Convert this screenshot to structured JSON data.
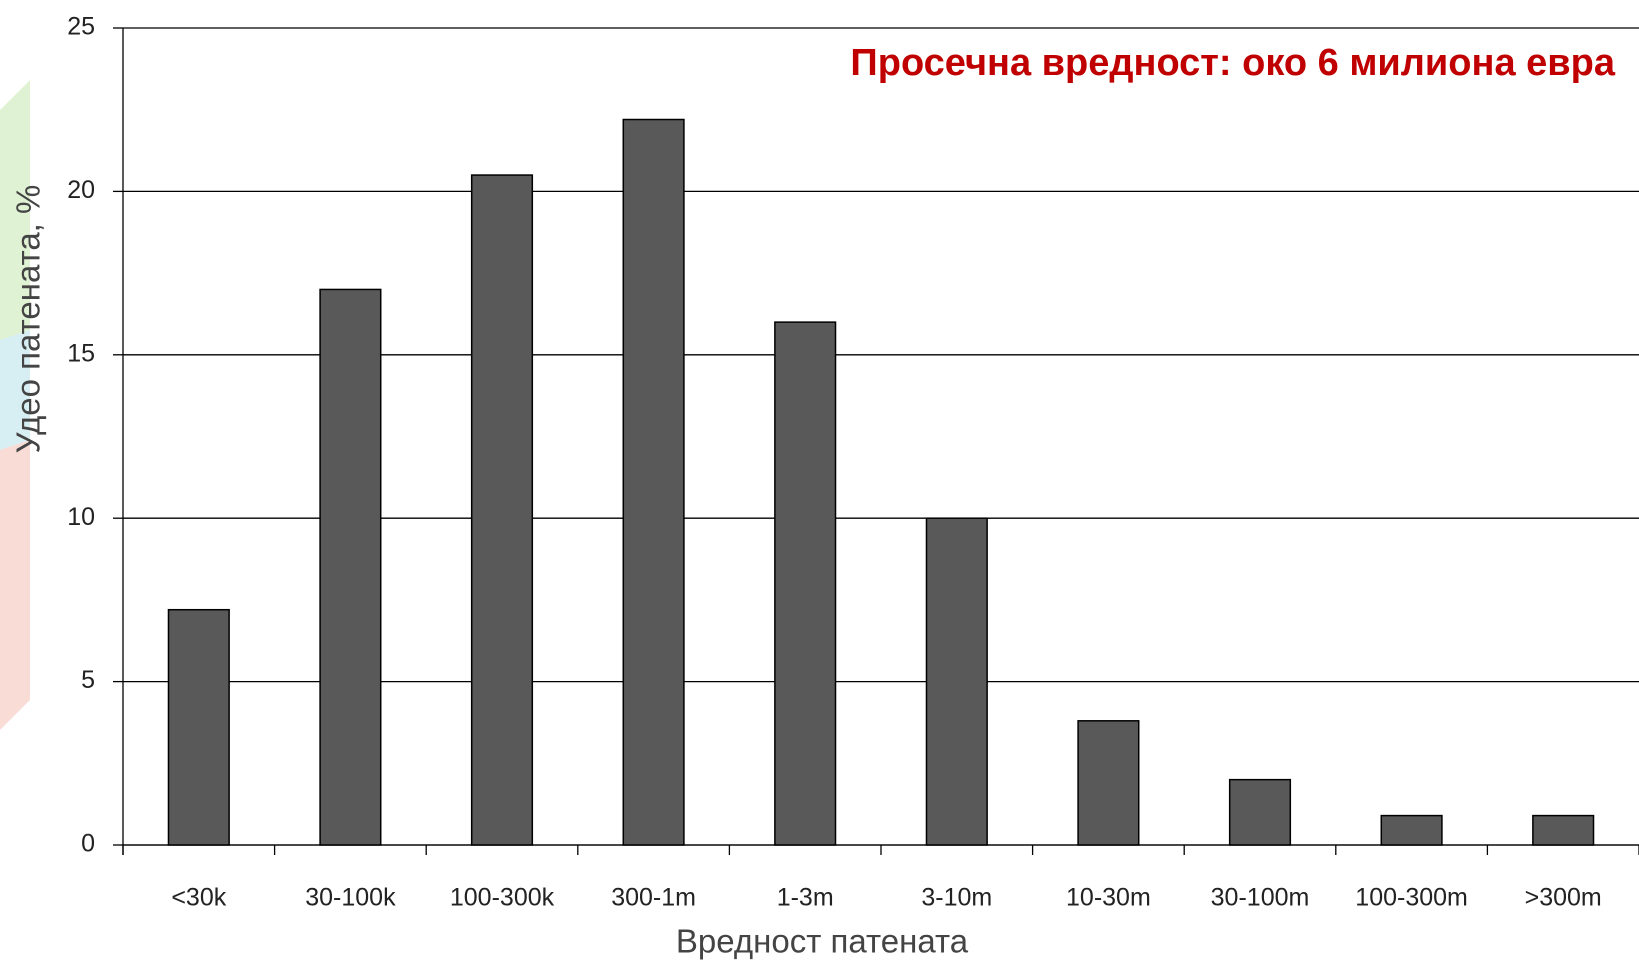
{
  "chart_data": {
    "type": "bar",
    "annotation": "Просечна вредност: око 6 милиона евра",
    "xlabel": "Вредност патената",
    "ylabel": "Удео патената, %",
    "categories": [
      "<30k",
      "30-100k",
      "100-300k",
      "300-1m",
      "1-3m",
      "3-10m",
      "10-30m",
      "30-100m",
      "100-300m",
      ">300m"
    ],
    "values": [
      7.2,
      17,
      20.5,
      22.2,
      16,
      10,
      3.8,
      2,
      0.9,
      0.9
    ],
    "color": "#595959",
    "ylim": [
      0,
      25
    ],
    "yticks": [
      0,
      5,
      10,
      15,
      20,
      25
    ],
    "grid": true
  }
}
